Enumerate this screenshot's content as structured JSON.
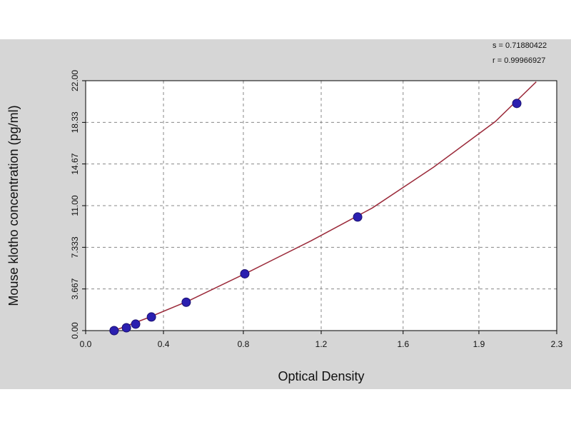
{
  "chart_data": {
    "type": "scatter",
    "xlabel": "Optical Density",
    "ylabel": "Mouse klotho concentration (pg/ml)",
    "annotations": [
      "s = 0.71880422",
      "r = 0.99966927"
    ],
    "xlim": [
      0,
      2.3
    ],
    "xticks": [
      {
        "value": 0,
        "label": "0.0"
      },
      {
        "value": 0.38,
        "label": "0.4"
      },
      {
        "value": 0.77,
        "label": "0.8"
      },
      {
        "value": 1.15,
        "label": "1.2"
      },
      {
        "value": 1.55,
        "label": "1.6"
      },
      {
        "value": 1.92,
        "label": "1.9"
      },
      2.3
    ],
    "ylim": [
      0,
      22
    ],
    "yticks": [
      {
        "value": 0,
        "label": "0.00"
      },
      3.667,
      7.333,
      {
        "value": 11,
        "label": "11.00"
      },
      14.67,
      18.33,
      {
        "value": 22,
        "label": "22.00"
      }
    ],
    "grid": true,
    "series": [
      {
        "style": "markers",
        "color": "#2b1fb0",
        "x": [
          0.139,
          0.199,
          0.244,
          0.321,
          0.491,
          0.777,
          1.328,
          2.105
        ],
        "values": [
          0,
          0.25,
          0.57,
          1.2,
          2.5,
          5.0,
          10.0,
          20.0
        ]
      },
      {
        "style": "line",
        "color": "#9b2a3a",
        "x": [
          0.14,
          0.3,
          0.5,
          0.8,
          1.1,
          1.4,
          1.7,
          2.0,
          2.2
        ],
        "values": [
          0,
          1.1,
          2.6,
          5.2,
          7.9,
          10.8,
          14.4,
          18.4,
          21.9
        ]
      }
    ]
  }
}
